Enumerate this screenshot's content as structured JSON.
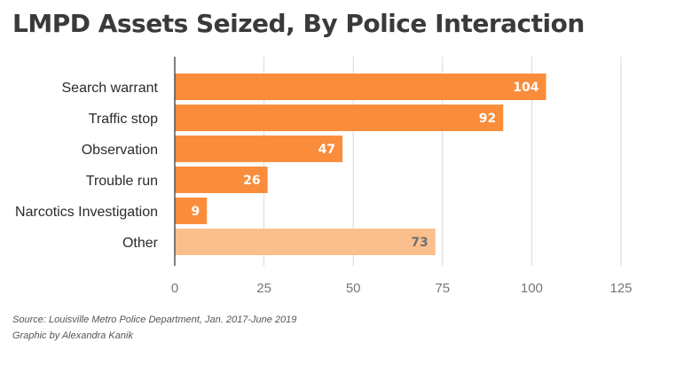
{
  "chart_data": {
    "type": "bar",
    "orientation": "horizontal",
    "title": "LMPD Assets Seized, By Police Interaction",
    "categories": [
      "Search warrant",
      "Traffic stop",
      "Observation",
      "Trouble run",
      "Narcotics Investigation",
      "Other"
    ],
    "values": [
      104,
      92,
      47,
      26,
      9,
      73
    ],
    "xlim": [
      0,
      125
    ],
    "xticks": [
      0,
      25,
      50,
      75,
      100,
      125
    ],
    "xlabel": "",
    "ylabel": "",
    "grid": true,
    "colors": {
      "primary": "#f98d3c",
      "muted": "#fbbf8e",
      "value_light": "#ffffff",
      "value_dark": "#6f6f6f",
      "gridline": "#d9d9d9",
      "axis": "#555555"
    },
    "highlight": [
      "primary",
      "primary",
      "primary",
      "primary",
      "primary",
      "muted"
    ]
  },
  "footer": {
    "source": "Source: Louisville Metro Police Department, Jan. 2017-June 2019",
    "credit": "Graphic by Alexandra Kanik"
  }
}
